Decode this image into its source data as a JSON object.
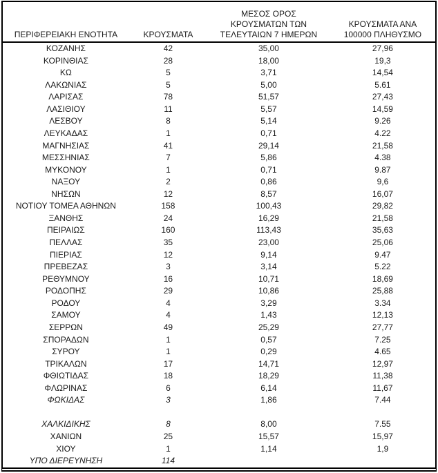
{
  "table": {
    "headers": {
      "region": "ΠΕΡΙΦΕΡΕΙΑΚΗ ΕΝΟΤΗΤΑ",
      "cases": "ΚΡΟΥΣΜΑΤΑ",
      "avg7": "ΜΕΣΟΣ ΟΡΟΣ\nΚΡΟΥΣΜΑΤΩΝ ΤΩΝ\nΤΕΛΕΥΤΑΙΩΝ 7 ΗΜΕΡΩΝ",
      "per100k": "ΚΡΟΥΣΜΑΤΑ ΑΝΑ\n100000 ΠΛΗΘΥΣΜΟ"
    },
    "rows": [
      {
        "region": "ΚΟΖΑΝΗΣ",
        "cases": "42",
        "avg7": "35,00",
        "per100k": "27,96"
      },
      {
        "region": "ΚΟΡΙΝΘΙΑΣ",
        "cases": "28",
        "avg7": "18,00",
        "per100k": "19,3"
      },
      {
        "region": "ΚΩ",
        "cases": "5",
        "avg7": "3,71",
        "per100k": "14,54"
      },
      {
        "region": "ΛΑΚΩΝΙΑΣ",
        "cases": "5",
        "avg7": "5,00",
        "per100k": "5.61"
      },
      {
        "region": "ΛΑΡΙΣΑΣ",
        "cases": "78",
        "avg7": "51,57",
        "per100k": "27,43"
      },
      {
        "region": "ΛΑΣΙΘΙΟΥ",
        "cases": "11",
        "avg7": "5,57",
        "per100k": "14,59"
      },
      {
        "region": "ΛΕΣΒΟΥ",
        "cases": "8",
        "avg7": "5,14",
        "per100k": "9.26"
      },
      {
        "region": "ΛΕΥΚΑΔΑΣ",
        "cases": "1",
        "avg7": "0,71",
        "per100k": "4.22"
      },
      {
        "region": "ΜΑΓΝΗΣΙΑΣ",
        "cases": "41",
        "avg7": "29,14",
        "per100k": "21,58"
      },
      {
        "region": "ΜΕΣΣΗΝΙΑΣ",
        "cases": "7",
        "avg7": "5,86",
        "per100k": "4.38"
      },
      {
        "region": "ΜΥΚΟΝΟΥ",
        "cases": "1",
        "avg7": "0,71",
        "per100k": "9.87"
      },
      {
        "region": "ΝΑΞΟΥ",
        "cases": "2",
        "avg7": "0,86",
        "per100k": "9,6"
      },
      {
        "region": "ΝΗΣΩΝ",
        "cases": "12",
        "avg7": "8,57",
        "per100k": "16,07"
      },
      {
        "region": "ΝΟΤΙΟΥ ΤΟΜΕΑ ΑΘΗΝΩΝ",
        "cases": "158",
        "avg7": "100,43",
        "per100k": "29,82"
      },
      {
        "region": "ΞΑΝΘΗΣ",
        "cases": "24",
        "avg7": "16,29",
        "per100k": "21,58"
      },
      {
        "region": "ΠΕΙΡΑΙΩΣ",
        "cases": "160",
        "avg7": "113,43",
        "per100k": "35,63"
      },
      {
        "region": "ΠΕΛΛΑΣ",
        "cases": "35",
        "avg7": "23,00",
        "per100k": "25,06"
      },
      {
        "region": "ΠΙΕΡΙΑΣ",
        "cases": "12",
        "avg7": "9,14",
        "per100k": "9.47"
      },
      {
        "region": "ΠΡΕΒΕΖΑΣ",
        "cases": "3",
        "avg7": "3,14",
        "per100k": "5.22"
      },
      {
        "region": "ΡΕΘΥΜΝΟΥ",
        "cases": "16",
        "avg7": "10,71",
        "per100k": "18,69"
      },
      {
        "region": "ΡΟΔΟΠΗΣ",
        "cases": "29",
        "avg7": "10,86",
        "per100k": "25,88"
      },
      {
        "region": "ΡΟΔΟΥ",
        "cases": "4",
        "avg7": "3,29",
        "per100k": "3.34"
      },
      {
        "region": "ΣΑΜΟΥ",
        "cases": "4",
        "avg7": "1,43",
        "per100k": "12,13"
      },
      {
        "region": "ΣΕΡΡΩΝ",
        "cases": "49",
        "avg7": "25,29",
        "per100k": "27,77"
      },
      {
        "region": "ΣΠΟΡΑΔΩΝ",
        "cases": "1",
        "avg7": "0,57",
        "per100k": "7.25"
      },
      {
        "region": "ΣΥΡΟΥ",
        "cases": "1",
        "avg7": "0,29",
        "per100k": "4.65"
      },
      {
        "region": "ΤΡΙΚΑΛΩΝ",
        "cases": "17",
        "avg7": "14,71",
        "per100k": "12,97"
      },
      {
        "region": "ΦΘΙΩΤΙΔΑΣ",
        "cases": "18",
        "avg7": "18,29",
        "per100k": "11,38"
      },
      {
        "region": "ΦΛΩΡΙΝΑΣ",
        "cases": "6",
        "avg7": "6,14",
        "per100k": "11,67"
      },
      {
        "region": "ΦΩΚΙΔΑΣ",
        "cases": "3",
        "avg7": "1,86",
        "per100k": "7.44",
        "italic": true
      },
      {
        "blank": true
      },
      {
        "region": "ΧΑΛΚΙΔΙΚΗΣ",
        "cases": "8",
        "avg7": "8,00",
        "per100k": "7.55",
        "italic": true
      },
      {
        "region": "ΧΑΝΙΩΝ",
        "cases": "25",
        "avg7": "15,57",
        "per100k": "15,97"
      },
      {
        "region": "ΧΙΟΥ",
        "cases": "1",
        "avg7": "1,14",
        "per100k": "1,9"
      },
      {
        "region": "ΥΠΟ ΔΙΕΡΕΥΝΗΣΗ",
        "cases": "114",
        "avg7": "",
        "per100k": "",
        "italic": true
      }
    ]
  },
  "colors": {
    "border": "#000000",
    "text": "#1a1a1a",
    "background": "#ffffff"
  }
}
